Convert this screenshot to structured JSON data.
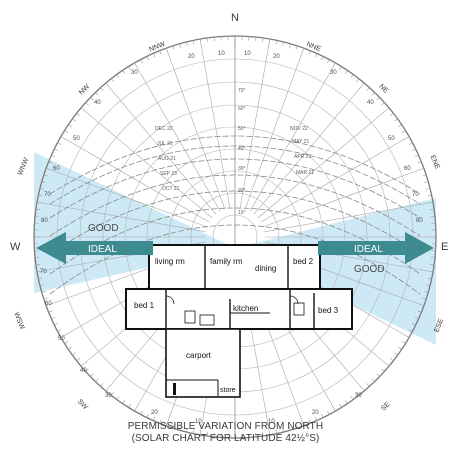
{
  "compass": {
    "north": "N",
    "west": "W",
    "east": "E",
    "nnw": "NNW",
    "nne": "NNE",
    "nw": "NW",
    "ne": "NE",
    "wnw": "WNW",
    "ene": "ENE",
    "wsw": "WSW",
    "ese": "ESE",
    "sw": "SW",
    "se": "SE"
  },
  "zones": {
    "good_left": "GOOD",
    "ideal_left": "IDEAL",
    "ideal_right": "IDEAL",
    "good_right": "GOOD",
    "fill_color": "#cde9f6",
    "arrow_color": "#3d8a91"
  },
  "degree_labels": [
    "10",
    "20",
    "30",
    "40",
    "50",
    "60",
    "70",
    "80"
  ],
  "sun_path_labels": [
    "DEC 22",
    "NOV 22",
    "JUL 21",
    "MAY 21",
    "AUG 21",
    "APR 21",
    "SEP 23",
    "MAR 21",
    "OCT 21"
  ],
  "altitude_labels": [
    "70°",
    "60°",
    "50°",
    "40°",
    "30°",
    "20°",
    "10°"
  ],
  "floor_plan": {
    "rooms": {
      "living": "living rm",
      "family": "family rm",
      "dining": "dining",
      "bed2": "bed 2",
      "bed1": "bed 1",
      "kitchen": "kitchen",
      "bed3": "bed 3",
      "carport": "carport",
      "store": "store"
    }
  },
  "caption": {
    "line1": "PERMISSIBLE VARIATION FROM NORTH",
    "line2": "(SOLAR CHART FOR LATITUDE 42½°S)"
  }
}
